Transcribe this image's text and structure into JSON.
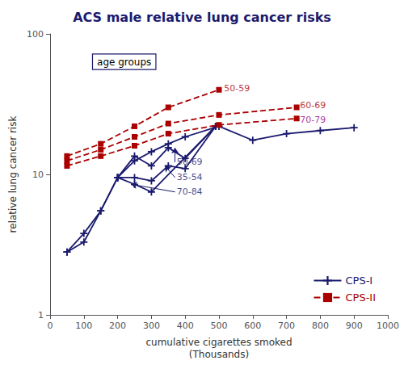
{
  "chart_data": {
    "type": "line",
    "title": "ACS male relative lung cancer risks",
    "x_label": "cumulative cigarettes smoked\n(Thousands)",
    "y_label": "relative lung cancer risk",
    "log": "y",
    "xlim": [
      0,
      1000
    ],
    "xticks": [
      0,
      100,
      200,
      300,
      400,
      500,
      600,
      700,
      800,
      900,
      1000
    ],
    "ylim": [
      1,
      100
    ],
    "yticks": [
      1,
      10,
      100
    ],
    "grid": false,
    "legend": "lower right",
    "series": [
      {
        "name": "CPS-I",
        "color": "#1a1a6e",
        "marker": "plus",
        "line_style": "solid",
        "x": [
          50,
          100,
          150,
          200,
          250,
          300,
          350,
          400,
          500,
          600,
          700,
          800,
          900
        ],
        "values": [
          2.8,
          3.8,
          5.5,
          9.5,
          12.5,
          14.5,
          16.5,
          18.5,
          22.0,
          17.5,
          19.5,
          20.5,
          21.5
        ]
      },
      {
        "name": "CPS-I",
        "color": "#1a1a6e",
        "marker": "plus",
        "line_style": "solid",
        "x": [
          200,
          250,
          300,
          350,
          400,
          490
        ],
        "values": [
          9.5,
          13.5,
          11.5,
          15.5,
          13.0,
          22.0
        ]
      },
      {
        "name": "CPS-I",
        "color": "#1a1a6e",
        "marker": "plus",
        "line_style": "solid",
        "x": [
          200,
          250,
          300,
          350,
          400,
          490
        ],
        "values": [
          9.5,
          9.5,
          9.0,
          11.5,
          11.0,
          22.0
        ]
      },
      {
        "name": "CPS-I",
        "color": "#1a1a6e",
        "marker": "plus",
        "line_style": "solid",
        "x": [
          50,
          100,
          150,
          200,
          250,
          300,
          490
        ],
        "values": [
          2.8,
          3.3,
          5.5,
          9.5,
          8.5,
          7.5,
          22.0
        ]
      },
      {
        "name": "CPS-II",
        "color": "#aa0000",
        "marker": "square",
        "line_style": "dashed",
        "x": [
          50,
          150,
          250,
          350,
          500
        ],
        "values": [
          13.5,
          16.5,
          22.0,
          30.0,
          40.0
        ]
      },
      {
        "name": "CPS-II",
        "color": "#aa0000",
        "marker": "square",
        "line_style": "dashed",
        "x": [
          50,
          150,
          250,
          350,
          500,
          730
        ],
        "values": [
          12.5,
          15.0,
          18.5,
          23.0,
          26.5,
          30.0
        ]
      },
      {
        "name": "CPS-II",
        "color": "#aa0000",
        "marker": "square",
        "line_style": "dashed",
        "x": [
          50,
          150,
          250,
          350,
          500,
          730
        ],
        "values": [
          11.5,
          13.5,
          16.0,
          19.5,
          22.5,
          25.0
        ]
      }
    ],
    "annotations": [
      {
        "text": "age groups",
        "color": "#1a1a6e"
      },
      {
        "text": "50-69",
        "x": 370,
        "y": 12.2,
        "arrow_to": [
          370,
          15.5
        ],
        "color": "#1a1a6e"
      },
      {
        "text": "35-54",
        "x": 370,
        "y": 9.5,
        "arrow_to": [
          340,
          11.5
        ],
        "color": "#1a1a6e"
      },
      {
        "text": "70-84",
        "x": 370,
        "y": 7.5,
        "arrow_to": [
          240,
          8.5
        ],
        "color": "#1a1a6e"
      },
      {
        "text": "50-59",
        "x": 510,
        "y": 41,
        "color": "#aa0000"
      },
      {
        "text": "60-69",
        "x": 735,
        "y": 31,
        "color": "#aa0000"
      },
      {
        "text": "70-79",
        "x": 735,
        "y": 24.5,
        "color": "#8B008B"
      }
    ]
  }
}
